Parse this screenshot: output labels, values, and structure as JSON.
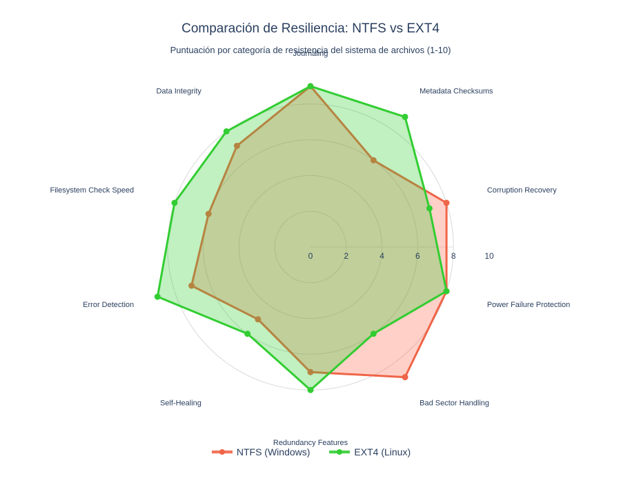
{
  "chart_data": {
    "type": "radar",
    "title": "Comparación de Resiliencia: NTFS vs EXT4",
    "subtitle": "Puntuación por categoría de resistencia del sistema de archivos (1-10)",
    "categories": [
      "Journaling",
      "Metadata Checksums",
      "Corruption Recovery",
      "Power Failure Protection",
      "Bad Sector Handling",
      "Redundancy Features",
      "Self-Healing",
      "Error Detection",
      "Filesystem Check Speed",
      "Data Integrity"
    ],
    "radial_range": [
      0,
      10
    ],
    "radial_ticks": [
      "0",
      "2",
      "4",
      "6",
      "8",
      "10"
    ],
    "series": [
      {
        "name": "NTFS (Windows)",
        "color": "#ef6548",
        "fill": "rgba(255,99,71,0.3)",
        "values": [
          9,
          6,
          8,
          8,
          9,
          7,
          5,
          7,
          6,
          7
        ]
      },
      {
        "name": "EXT4 (Linux)",
        "color": "#32cd32",
        "fill": "rgba(50,205,50,0.3)",
        "values": [
          9,
          9,
          7,
          8,
          6,
          8,
          6,
          9,
          8,
          8
        ]
      }
    ],
    "legend_position": "bottom-center",
    "grid": true
  }
}
